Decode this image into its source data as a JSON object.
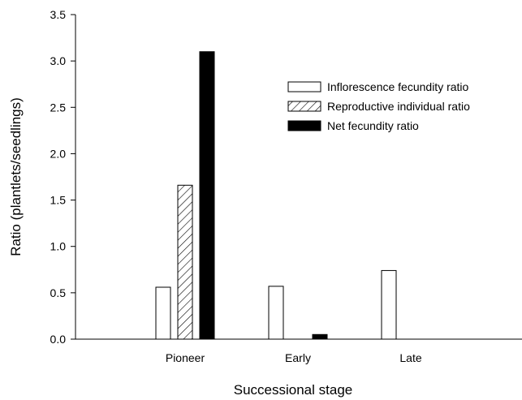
{
  "chart_data": {
    "type": "bar",
    "categories": [
      "Pioneer",
      "Early",
      "Late"
    ],
    "series": [
      {
        "name": "Inflorescence fecundity ratio",
        "values": [
          0.56,
          0.57,
          0.74
        ],
        "fill": "#ffffff",
        "pattern": "none"
      },
      {
        "name": "Reproductive individual ratio",
        "values": [
          1.66,
          0.0,
          0.0
        ],
        "fill": "#ffffff",
        "pattern": "diagonal-hatch"
      },
      {
        "name": "Net fecundity ratio",
        "values": [
          3.1,
          0.05,
          0.0
        ],
        "fill": "#000000",
        "pattern": "none"
      }
    ],
    "xlabel": "Successional stage",
    "ylabel": "Ratio (plantlets/seedlings)",
    "ylim": [
      0,
      3.5
    ],
    "yticks": [
      "0.0",
      "0.5",
      "1.0",
      "1.5",
      "2.0",
      "2.5",
      "3.0",
      "3.5"
    ],
    "grid": false,
    "legend_position": "top-right"
  }
}
